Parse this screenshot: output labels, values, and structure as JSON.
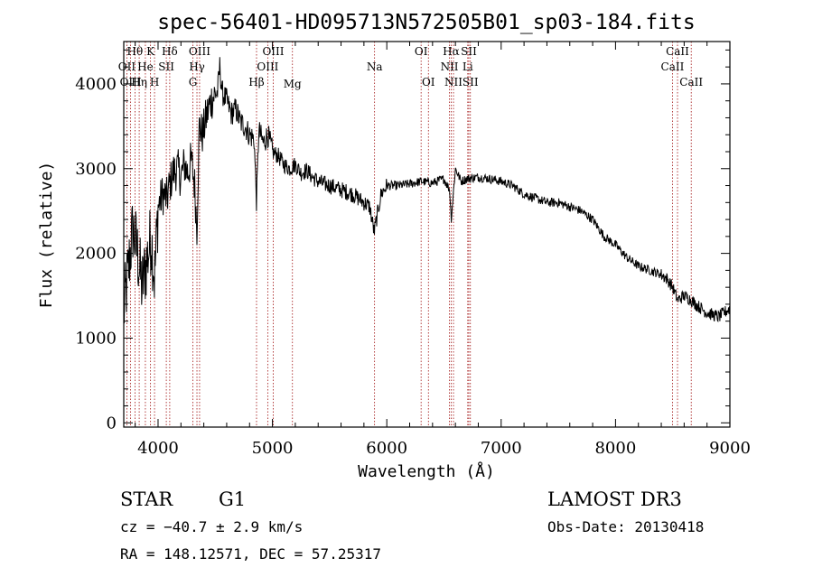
{
  "chart_data": {
    "type": "line",
    "title": "spec-56401-HD095713N572505B01_sp03-184.fits",
    "xlabel": "Wavelength (Å)",
    "ylabel": "Flux (relative)",
    "xlim": [
      3700,
      9000
    ],
    "ylim": [
      -50,
      4500
    ],
    "x_ticks": [
      4000,
      5000,
      6000,
      7000,
      8000,
      9000
    ],
    "y_ticks": [
      0,
      1000,
      2000,
      3000,
      4000
    ],
    "series": [
      {
        "x": [
          3700,
          3740,
          3780,
          3820,
          3860,
          3900,
          3940,
          3970,
          4000,
          4040,
          4080,
          4100,
          4130,
          4170,
          4200,
          4230,
          4260,
          4290,
          4320,
          4340,
          4360,
          4390,
          4420,
          4450,
          4480,
          4520,
          4540,
          4560,
          4600,
          4640,
          4680,
          4720,
          4760,
          4800,
          4840,
          4861,
          4880,
          4920,
          4960,
          5000,
          5050,
          5100,
          5150,
          5200,
          5250,
          5300,
          5350,
          5400,
          5450,
          5500,
          5600,
          5700,
          5750,
          5800,
          5850,
          5890,
          5950,
          6000,
          6100,
          6200,
          6300,
          6400,
          6500,
          6550,
          6563,
          6600,
          6650,
          6700,
          6800,
          6900,
          7000,
          7100,
          7200,
          7300,
          7400,
          7500,
          7600,
          7700,
          7750,
          7800,
          7850,
          7900,
          8000,
          8100,
          8200,
          8300,
          8400,
          8450,
          8500,
          8542,
          8600,
          8662,
          8700,
          8800,
          8900,
          9000
        ],
        "y": [
          1300,
          1800,
          2300,
          2000,
          1600,
          1900,
          2200,
          1700,
          2550,
          2700,
          2650,
          2800,
          2950,
          3000,
          2900,
          3050,
          2950,
          3100,
          2800,
          2300,
          3500,
          3400,
          3600,
          3750,
          3850,
          3900,
          4200,
          3900,
          3800,
          3650,
          3700,
          3550,
          3500,
          3400,
          3350,
          2600,
          3450,
          3300,
          3400,
          3200,
          3150,
          3050,
          3000,
          3050,
          2950,
          2980,
          2900,
          2850,
          2820,
          2800,
          2750,
          2700,
          2650,
          2600,
          2550,
          2250,
          2700,
          2800,
          2800,
          2820,
          2850,
          2830,
          2880,
          2750,
          2400,
          3000,
          2850,
          2880,
          2900,
          2880,
          2850,
          2800,
          2700,
          2650,
          2600,
          2600,
          2550,
          2500,
          2450,
          2400,
          2300,
          2200,
          2100,
          1950,
          1850,
          1800,
          1750,
          1700,
          1600,
          1450,
          1500,
          1450,
          1400,
          1300,
          1250,
          1350
        ]
      }
    ],
    "reference_lines": [
      {
        "label": "Hθ",
        "x": 3798,
        "row": 0
      },
      {
        "label": "OII",
        "x": 3727,
        "row": 1
      },
      {
        "label": "OIII",
        "x": 3760,
        "row": 2
      },
      {
        "label": "K",
        "x": 3934,
        "row": 0
      },
      {
        "label": "He",
        "x": 3889,
        "row": 1
      },
      {
        "label": "Hη",
        "x": 3835,
        "row": 2
      },
      {
        "label": "Hδ",
        "x": 4102,
        "row": 0
      },
      {
        "label": "SII",
        "x": 4072,
        "row": 1
      },
      {
        "label": "H",
        "x": 3969,
        "row": 2
      },
      {
        "label": "OIII",
        "x": 4363,
        "row": 0
      },
      {
        "label": "Hγ",
        "x": 4340,
        "row": 1
      },
      {
        "label": "G",
        "x": 4305,
        "row": 2
      },
      {
        "label": "OIII",
        "x": 5007,
        "row": 0
      },
      {
        "label": "OIII",
        "x": 4959,
        "row": 1
      },
      {
        "label": "Hβ",
        "x": 4861,
        "row": 2
      },
      {
        "label": "Mg",
        "x": 5175,
        "row": 3
      },
      {
        "label": "Na",
        "x": 5893,
        "row": 1
      },
      {
        "label": "OI",
        "x": 6300,
        "row": 0
      },
      {
        "label": "OI",
        "x": 6364,
        "row": 2
      },
      {
        "label": "Hα",
        "x": 6563,
        "row": 0
      },
      {
        "label": "NII",
        "x": 6548,
        "row": 1
      },
      {
        "label": "NII",
        "x": 6583,
        "row": 2
      },
      {
        "label": "SII",
        "x": 6717,
        "row": 0
      },
      {
        "label": "Li",
        "x": 6708,
        "row": 1
      },
      {
        "label": "SII",
        "x": 6731,
        "row": 2
      },
      {
        "label": "CaII",
        "x": 8542,
        "row": 0
      },
      {
        "label": "CaII",
        "x": 8498,
        "row": 1
      },
      {
        "label": "CaII",
        "x": 8662,
        "row": 2
      }
    ],
    "colors": {
      "spectrum": "#000000",
      "reference_line": "#a01010",
      "axes": "#000000"
    }
  },
  "info": {
    "object_class": "STAR",
    "subclass": "G1",
    "survey": "LAMOST DR3",
    "redshift": "cz = −40.7 ± 2.9 km/s",
    "obs_date": "Obs-Date: 20130418",
    "coords": "RA = 148.12571, DEC =  57.25317"
  }
}
